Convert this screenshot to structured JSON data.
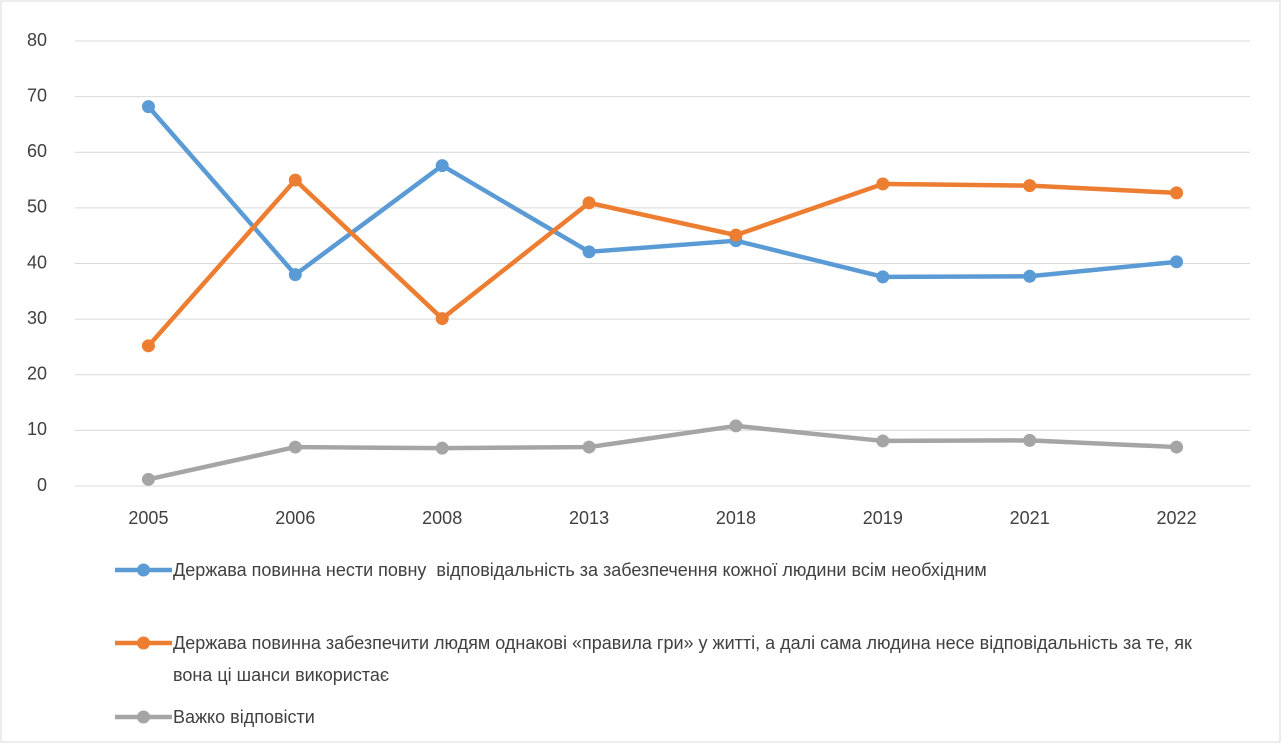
{
  "chart_data": {
    "type": "line",
    "categories": [
      "2005",
      "2006",
      "2008",
      "2013",
      "2018",
      "2019",
      "2021",
      "2022"
    ],
    "series": [
      {
        "name": "Держава повинна нести повну  відповідальність за забезпечення кожної людини всім необхідним",
        "color": "#5b9bd5",
        "values": [
          68.2,
          38.0,
          57.6,
          42.1,
          44.1,
          37.6,
          37.7,
          40.3
        ]
      },
      {
        "name": "Держава повинна забезпечити людям однакові «правила гри» у житті, а далі сама людина несе відповідальність за те, як вона ці шанси використає",
        "color": "#ed7d31",
        "values": [
          25.2,
          55.0,
          30.1,
          50.9,
          45.1,
          54.3,
          54.0,
          52.7
        ]
      },
      {
        "name": "Важко відповісти",
        "color": "#a5a5a5",
        "values": [
          1.2,
          7.0,
          6.8,
          7.0,
          10.8,
          8.1,
          8.2,
          7.0
        ]
      }
    ],
    "ylim": [
      0,
      80
    ],
    "yticks": [
      0,
      10,
      20,
      30,
      40,
      50,
      60,
      70,
      80
    ],
    "grid": true,
    "legend": "bottom"
  }
}
